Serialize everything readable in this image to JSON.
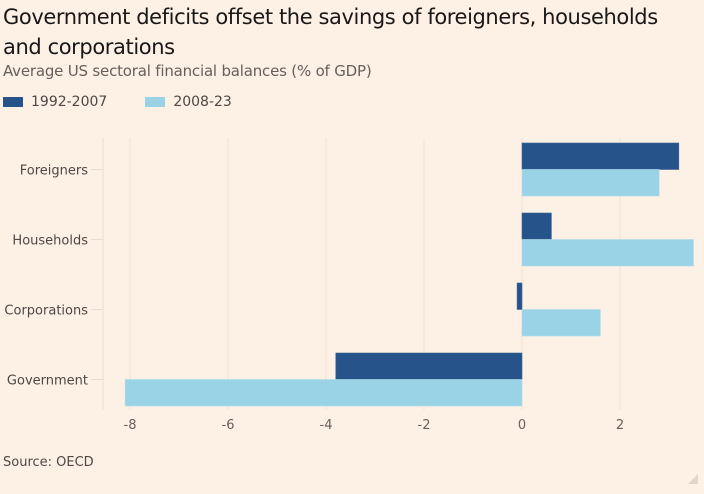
{
  "header": {
    "title": "Government deficits offset the savings of foreigners, households and corporations",
    "subtitle": "Average US sectoral financial balances (% of GDP)"
  },
  "legend": [
    {
      "label": "1992-2007",
      "color": "#26548a"
    },
    {
      "label": "2008-23",
      "color": "#9ad2e6"
    }
  ],
  "footer": {
    "source": "Source: OECD"
  },
  "chart_data": {
    "type": "bar",
    "orientation": "horizontal",
    "title": "Government deficits offset the savings of foreigners, households and corporations",
    "subtitle": "Average US sectoral financial balances (% of GDP)",
    "categories": [
      "Foreigners",
      "Households",
      "Corporations",
      "Government"
    ],
    "series": [
      {
        "name": "1992-2007",
        "color": "#26548a",
        "values": [
          3.2,
          0.6,
          -0.1,
          -3.8
        ]
      },
      {
        "name": "2008-23",
        "color": "#9ad2e6",
        "values": [
          2.8,
          3.5,
          1.6,
          -8.1
        ]
      }
    ],
    "xlabel": "",
    "ylabel": "",
    "xlim": [
      -8.5,
      3.5
    ],
    "xticks": [
      -8,
      -6,
      -4,
      -2,
      0,
      2
    ],
    "xtick_labels": [
      "-8",
      "-6",
      "-4",
      "-2",
      "0",
      "2"
    ],
    "grid": true,
    "legend_position": "top-left",
    "source": "Source: OECD"
  }
}
